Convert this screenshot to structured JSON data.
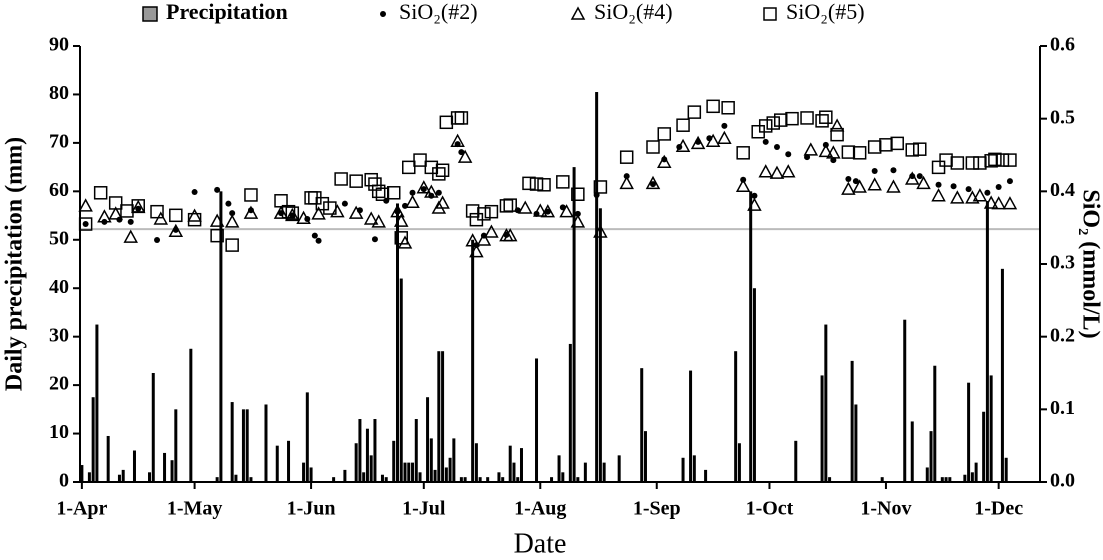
{
  "chart_data": {
    "type": "combo",
    "x_label": "Date",
    "y_label": "Daily precipitation (mm)",
    "y2_label": "SiO₂ (mmol/L)",
    "xlim": [
      -0.5,
      255
    ],
    "xticks": [
      {
        "value": 0,
        "label": "1-Apr"
      },
      {
        "value": 30,
        "label": "1-May"
      },
      {
        "value": 61,
        "label": "1-Jun"
      },
      {
        "value": 91,
        "label": "1-Jul"
      },
      {
        "value": 122,
        "label": "1-Aug"
      },
      {
        "value": 153,
        "label": "1-Sep"
      },
      {
        "value": 183,
        "label": "1-Oct"
      },
      {
        "value": 214,
        "label": "1-Nov"
      },
      {
        "value": 244,
        "label": "1-Dec"
      }
    ],
    "ylim": [
      0,
      90
    ],
    "yticks": [
      0,
      10,
      20,
      30,
      40,
      50,
      60,
      70,
      80,
      90
    ],
    "y2lim": [
      0,
      0.6
    ],
    "y2ticks": [
      {
        "value": 0,
        "label": "0.0"
      },
      0.1,
      0.2,
      0.3,
      0.4,
      0.5,
      0.6
    ],
    "reference_line": {
      "value": 0.348,
      "axis": "y2",
      "color": "#bbbbbb"
    },
    "series": [
      {
        "name": "Precipitation",
        "type": "bar",
        "color": "#000000",
        "legend_color": "#999999",
        "x": [
          0,
          2,
          3,
          4,
          7,
          10,
          11,
          14,
          18,
          19,
          22,
          24,
          25,
          29,
          36,
          37,
          40,
          41,
          43,
          44,
          45,
          49,
          52,
          55,
          59,
          60,
          61,
          67,
          70,
          73,
          74,
          75,
          76,
          77,
          78,
          80,
          81,
          83,
          84,
          85,
          86,
          87,
          88,
          89,
          90,
          92,
          93,
          94,
          95,
          96,
          97,
          98,
          99,
          101,
          102,
          104,
          105,
          106,
          108,
          111,
          112,
          114,
          115,
          116,
          117,
          121,
          125,
          127,
          128,
          130,
          131,
          132,
          134,
          137,
          138,
          139,
          143,
          149,
          150,
          160,
          162,
          163,
          166,
          174,
          175,
          178,
          179,
          190,
          197,
          198,
          199,
          205,
          206,
          213,
          219,
          221,
          225,
          226,
          227,
          229,
          230,
          231,
          235,
          236,
          237,
          238,
          240,
          241,
          242,
          245,
          246
        ],
        "values": [
          3.5,
          2,
          17.5,
          32.5,
          9.5,
          1.5,
          2.5,
          6.5,
          2,
          22.5,
          6,
          4.5,
          15,
          27.5,
          1,
          60,
          16.5,
          1.5,
          15,
          15,
          1,
          16,
          7.5,
          8.5,
          4,
          18.5,
          3,
          1,
          2.5,
          8,
          13,
          2,
          11,
          5.5,
          13,
          1.5,
          1,
          8.5,
          57.5,
          42,
          4,
          4,
          4,
          13,
          2,
          17.5,
          9,
          2.5,
          27,
          27,
          3,
          5,
          9,
          1,
          1,
          50,
          8,
          1,
          1,
          2,
          1,
          7.5,
          4,
          1,
          7,
          25.5,
          1,
          5.5,
          2,
          28.5,
          65,
          1,
          4,
          80.5,
          56.5,
          4,
          5.5,
          23.5,
          10.5,
          5,
          23,
          5.5,
          2.5,
          27,
          8,
          60,
          40,
          8.5,
          22,
          32.5,
          1,
          25,
          16,
          1,
          33.5,
          12.5,
          3,
          10.5,
          24,
          1,
          1,
          1,
          1.5,
          20.5,
          2,
          4,
          14.5,
          58,
          22,
          44,
          5
        ]
      },
      {
        "name": "SiO₂(#2)",
        "type": "scatter",
        "marker": "dot",
        "color": "#000000",
        "axis": "y2",
        "x": [
          1,
          6,
          10,
          13,
          15,
          20,
          25,
          30,
          36,
          39,
          40,
          45,
          53,
          56,
          60,
          62,
          63,
          70,
          74,
          78,
          81,
          84,
          86,
          88,
          91,
          93,
          95,
          100,
          101,
          105,
          107,
          113,
          116,
          121,
          124,
          128,
          132,
          137,
          145,
          152,
          155,
          159,
          164,
          167,
          171,
          176,
          179,
          182,
          185,
          188,
          193,
          198,
          200,
          204,
          206,
          211,
          216,
          221,
          223,
          228,
          232,
          236,
          241,
          244,
          247
        ],
        "values": [
          0.355,
          0.358,
          0.361,
          0.358,
          0.376,
          0.333,
          0.347,
          0.399,
          0.402,
          0.383,
          0.37,
          0.374,
          0.37,
          0.367,
          0.362,
          0.339,
          0.332,
          0.383,
          0.374,
          0.334,
          0.387,
          0.372,
          0.38,
          0.398,
          0.403,
          0.394,
          0.398,
          0.465,
          0.454,
          0.326,
          0.339,
          0.34,
          0.374,
          0.369,
          0.372,
          0.378,
          0.369,
          0.395,
          0.421,
          0.41,
          0.444,
          0.461,
          0.468,
          0.473,
          0.49,
          0.416,
          0.394,
          0.468,
          0.461,
          0.451,
          0.447,
          0.464,
          0.443,
          0.417,
          0.414,
          0.428,
          0.429,
          0.421,
          0.421,
          0.409,
          0.407,
          0.403,
          0.398,
          0.406,
          0.414
        ]
      },
      {
        "name": "SiO₂(#4)",
        "type": "scatter",
        "marker": "triangle",
        "color": "#000000",
        "axis": "y2",
        "x": [
          1,
          6,
          9,
          13,
          15,
          21,
          25,
          30,
          36,
          40,
          45,
          53,
          56,
          59,
          63,
          68,
          73,
          77,
          79,
          84,
          85,
          86,
          88,
          91,
          93,
          95,
          96,
          100,
          102,
          104,
          105,
          107,
          109,
          113,
          114,
          118,
          122,
          124,
          129,
          132,
          138,
          145,
          152,
          155,
          160,
          164,
          168,
          171,
          176,
          179,
          182,
          185,
          188,
          194,
          198,
          200,
          201,
          204,
          207,
          211,
          216,
          221,
          224,
          228,
          233,
          237,
          239,
          242,
          244,
          247
        ],
        "values": [
          0.38,
          0.365,
          0.369,
          0.337,
          0.378,
          0.362,
          0.345,
          0.366,
          0.359,
          0.358,
          0.37,
          0.37,
          0.367,
          0.363,
          0.369,
          0.372,
          0.37,
          0.362,
          0.358,
          0.372,
          0.359,
          0.329,
          0.385,
          0.405,
          0.399,
          0.377,
          0.384,
          0.469,
          0.447,
          0.332,
          0.317,
          0.333,
          0.344,
          0.339,
          0.339,
          0.377,
          0.373,
          0.372,
          0.372,
          0.358,
          0.344,
          0.411,
          0.411,
          0.44,
          0.462,
          0.466,
          0.469,
          0.473,
          0.407,
          0.381,
          0.427,
          0.425,
          0.427,
          0.457,
          0.455,
          0.453,
          0.49,
          0.403,
          0.406,
          0.409,
          0.406,
          0.417,
          0.411,
          0.394,
          0.391,
          0.391,
          0.394,
          0.384,
          0.383,
          0.383
        ]
      },
      {
        "name": "SiO₂(#5)",
        "type": "scatter",
        "marker": "square",
        "color": "#000000",
        "axis": "y2",
        "x": [
          1,
          5,
          9,
          12,
          15,
          20,
          25,
          30,
          36,
          40,
          45,
          53,
          55,
          56,
          61,
          62,
          64,
          66,
          69,
          73,
          77,
          78,
          79,
          80,
          83,
          85,
          87,
          90,
          93,
          95,
          96,
          97,
          100,
          101,
          104,
          105,
          107,
          109,
          113,
          114,
          119,
          121,
          123,
          128,
          132,
          138,
          145,
          152,
          155,
          160,
          163,
          168,
          172,
          176,
          180,
          182,
          184,
          186,
          189,
          193,
          197,
          198,
          201,
          204,
          207,
          211,
          214,
          217,
          221,
          223,
          228,
          230,
          233,
          237,
          239,
          242,
          243,
          245,
          247
        ],
        "values": [
          0.355,
          0.398,
          0.384,
          0.373,
          0.38,
          0.372,
          0.367,
          0.361,
          0.339,
          0.326,
          0.395,
          0.387,
          0.372,
          0.37,
          0.391,
          0.391,
          0.383,
          0.377,
          0.417,
          0.414,
          0.416,
          0.41,
          0.4,
          0.396,
          0.398,
          0.336,
          0.433,
          0.443,
          0.433,
          0.424,
          0.429,
          0.495,
          0.501,
          0.501,
          0.373,
          0.361,
          0.369,
          0.372,
          0.38,
          0.381,
          0.411,
          0.41,
          0.409,
          0.413,
          0.396,
          0.406,
          0.447,
          0.461,
          0.479,
          0.491,
          0.509,
          0.517,
          0.515,
          0.453,
          0.482,
          0.49,
          0.494,
          0.498,
          0.5,
          0.501,
          0.497,
          0.502,
          0.478,
          0.454,
          0.453,
          0.461,
          0.464,
          0.466,
          0.457,
          0.458,
          0.433,
          0.443,
          0.439,
          0.439,
          0.439,
          0.442,
          0.444,
          0.443,
          0.443
        ]
      }
    ]
  }
}
